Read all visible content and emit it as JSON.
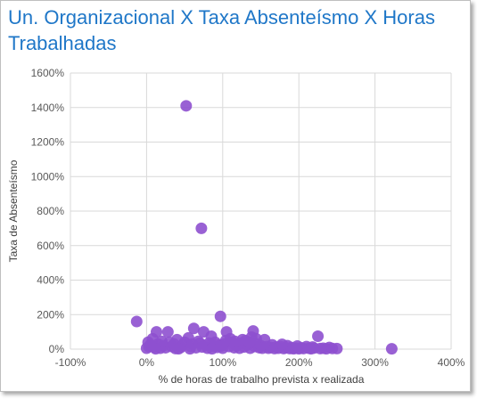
{
  "chart_data": {
    "type": "scatter",
    "title": "Un. Organizacional X Taxa Absenteísmo X Horas Trabalhadas",
    "xlabel": "% de horas de trabalho prevista x realizada",
    "ylabel": "Taxa de Absenteísmo",
    "xlim": [
      -100,
      400
    ],
    "ylim": [
      0,
      1600
    ],
    "x_ticks": [
      -100,
      0,
      100,
      200,
      300,
      400
    ],
    "y_ticks": [
      0,
      200,
      400,
      600,
      800,
      1000,
      1200,
      1400,
      1600
    ],
    "x_tick_labels": [
      "-100%",
      "0%",
      "100%",
      "200%",
      "300%",
      "400%"
    ],
    "y_tick_labels": [
      "0%",
      "200%",
      "400%",
      "600%",
      "800%",
      "1000%",
      "1200%",
      "1400%",
      "1600%"
    ],
    "grid": true,
    "legend": "none",
    "marker_color": "#8e50cf",
    "points": [
      {
        "x": 52,
        "y": 1410
      },
      {
        "x": 72,
        "y": 700
      },
      {
        "x": -13,
        "y": 160
      },
      {
        "x": 97,
        "y": 190
      },
      {
        "x": 140,
        "y": 105
      },
      {
        "x": 225,
        "y": 75
      },
      {
        "x": 322,
        "y": 2
      },
      {
        "x": 13,
        "y": 100
      },
      {
        "x": 28,
        "y": 100
      },
      {
        "x": 62,
        "y": 120
      },
      {
        "x": 75,
        "y": 100
      },
      {
        "x": 105,
        "y": 100
      },
      {
        "x": 8,
        "y": 60
      },
      {
        "x": 40,
        "y": 55
      },
      {
        "x": 55,
        "y": 65
      },
      {
        "x": 85,
        "y": 75
      },
      {
        "x": 110,
        "y": 60
      },
      {
        "x": 130,
        "y": 50
      },
      {
        "x": 155,
        "y": 55
      },
      {
        "x": 30,
        "y": 40
      },
      {
        "x": 70,
        "y": 35
      },
      {
        "x": 120,
        "y": 30
      },
      {
        "x": 165,
        "y": 25
      },
      {
        "x": 185,
        "y": 20
      },
      {
        "x": 210,
        "y": 15
      },
      {
        "x": 240,
        "y": 10
      },
      {
        "x": 250,
        "y": 3
      },
      {
        "x": 0,
        "y": 5
      },
      {
        "x": 3,
        "y": 15
      },
      {
        "x": 5,
        "y": 25
      },
      {
        "x": 10,
        "y": 10
      },
      {
        "x": 15,
        "y": 30
      },
      {
        "x": 18,
        "y": 5
      },
      {
        "x": 22,
        "y": 20
      },
      {
        "x": 25,
        "y": 8
      },
      {
        "x": 33,
        "y": 15
      },
      {
        "x": 36,
        "y": 30
      },
      {
        "x": 45,
        "y": 10
      },
      {
        "x": 48,
        "y": 25
      },
      {
        "x": 50,
        "y": 40
      },
      {
        "x": 58,
        "y": 15
      },
      {
        "x": 60,
        "y": 30
      },
      {
        "x": 65,
        "y": 8
      },
      {
        "x": 68,
        "y": 45
      },
      {
        "x": 78,
        "y": 20
      },
      {
        "x": 80,
        "y": 5
      },
      {
        "x": 82,
        "y": 35
      },
      {
        "x": 88,
        "y": 15
      },
      {
        "x": 90,
        "y": 40
      },
      {
        "x": 93,
        "y": 10
      },
      {
        "x": 95,
        "y": 25
      },
      {
        "x": 100,
        "y": 5
      },
      {
        "x": 102,
        "y": 30
      },
      {
        "x": 108,
        "y": 15
      },
      {
        "x": 112,
        "y": 40
      },
      {
        "x": 115,
        "y": 8
      },
      {
        "x": 118,
        "y": 20
      },
      {
        "x": 122,
        "y": 5
      },
      {
        "x": 125,
        "y": 35
      },
      {
        "x": 128,
        "y": 12
      },
      {
        "x": 133,
        "y": 25
      },
      {
        "x": 136,
        "y": 5
      },
      {
        "x": 138,
        "y": 70
      },
      {
        "x": 142,
        "y": 15
      },
      {
        "x": 145,
        "y": 30
      },
      {
        "x": 148,
        "y": 8
      },
      {
        "x": 150,
        "y": 20
      },
      {
        "x": 152,
        "y": 5
      },
      {
        "x": 158,
        "y": 15
      },
      {
        "x": 160,
        "y": 5
      },
      {
        "x": 163,
        "y": 10
      },
      {
        "x": 168,
        "y": 3
      },
      {
        "x": 170,
        "y": 12
      },
      {
        "x": 173,
        "y": 5
      },
      {
        "x": 176,
        "y": 15
      },
      {
        "x": 180,
        "y": 3
      },
      {
        "x": 183,
        "y": 8
      },
      {
        "x": 188,
        "y": 3
      },
      {
        "x": 190,
        "y": 10
      },
      {
        "x": 193,
        "y": 2
      },
      {
        "x": 196,
        "y": 6
      },
      {
        "x": 200,
        "y": 2
      },
      {
        "x": 203,
        "y": 8
      },
      {
        "x": 206,
        "y": 3
      },
      {
        "x": 213,
        "y": 5
      },
      {
        "x": 216,
        "y": 2
      },
      {
        "x": 220,
        "y": 6
      },
      {
        "x": 228,
        "y": 3
      },
      {
        "x": 232,
        "y": 5
      },
      {
        "x": 236,
        "y": 2
      },
      {
        "x": 244,
        "y": 4
      },
      {
        "x": 38,
        "y": 3
      },
      {
        "x": 42,
        "y": 2
      },
      {
        "x": 12,
        "y": 2
      },
      {
        "x": 20,
        "y": 45
      },
      {
        "x": 2,
        "y": 40
      },
      {
        "x": 57,
        "y": 2
      },
      {
        "x": 73,
        "y": 12
      },
      {
        "x": 86,
        "y": 2
      },
      {
        "x": 98,
        "y": 18
      },
      {
        "x": 104,
        "y": 50
      },
      {
        "x": 116,
        "y": 45
      },
      {
        "x": 126,
        "y": 55
      },
      {
        "x": 135,
        "y": 40
      },
      {
        "x": 144,
        "y": 60
      },
      {
        "x": 178,
        "y": 28
      },
      {
        "x": 198,
        "y": 18
      },
      {
        "x": 218,
        "y": 12
      }
    ]
  }
}
